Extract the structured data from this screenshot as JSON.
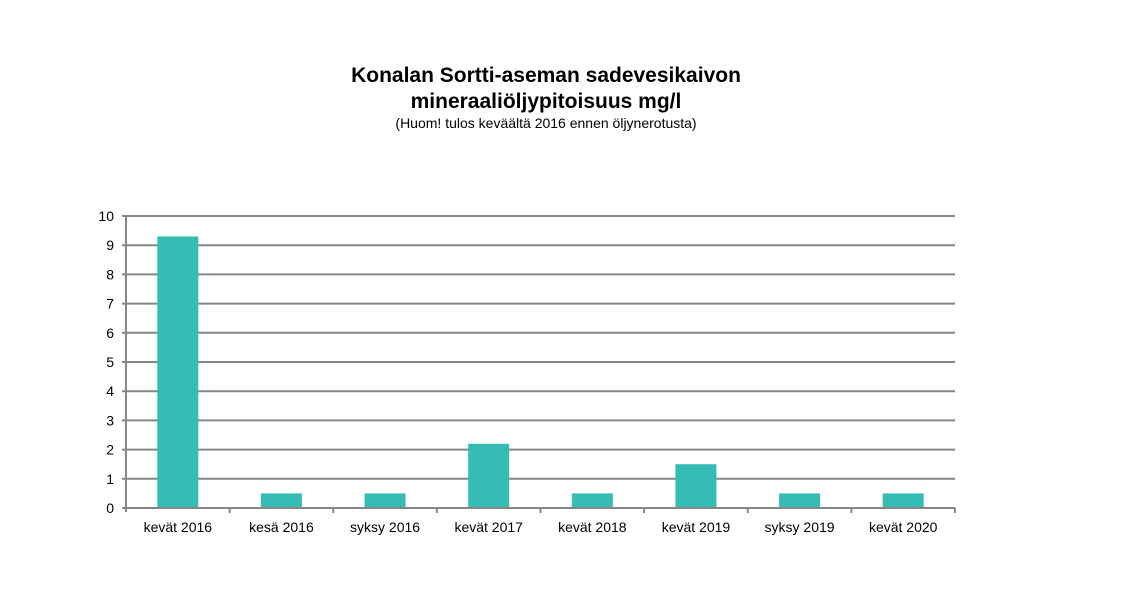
{
  "chart_data": {
    "type": "bar",
    "title_lines": [
      "Konalan Sortti-aseman sadevesikaivon",
      "mineraaliöljypitoisuus mg/l"
    ],
    "subtitle": "(Huom! tulos keväältä 2016 ennen öljynerotusta)",
    "categories": [
      "kevät 2016",
      "kesä 2016",
      "syksy 2016",
      "kevät 2017",
      "kevät 2018",
      "kevät 2019",
      "syksy 2019",
      "kevät 2020"
    ],
    "values": [
      9.3,
      0.5,
      0.5,
      2.2,
      0.5,
      1.5,
      0.5,
      0.5
    ],
    "xlabel": "",
    "ylabel": "",
    "ylim": [
      0,
      10
    ],
    "yticks": [
      "0",
      "1",
      "2",
      "3",
      "4",
      "5",
      "6",
      "7",
      "8",
      "9",
      "10"
    ],
    "grid": true,
    "legend": "none",
    "colors": {
      "bar": "#35BCB5",
      "grid": "#868686"
    }
  }
}
